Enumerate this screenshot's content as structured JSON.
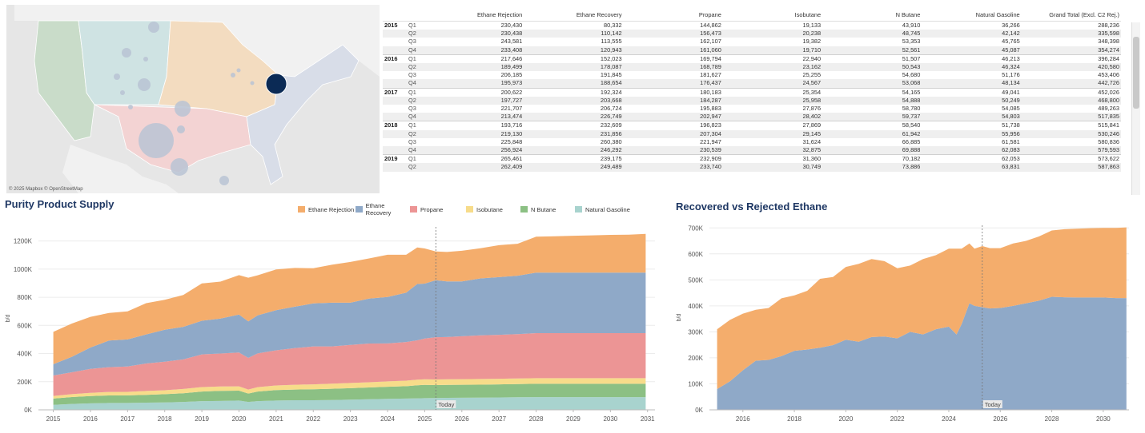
{
  "map": {
    "credit": "© 2025 Mapbox © OpenStreetMap",
    "colors": {
      "background": "#e6e6e6",
      "padd5": "#c9dcc9",
      "padd4": "#cfe3e3",
      "padd2": "#f3dcc0",
      "padd3": "#f3d3d3",
      "padd1": "#d8dde8",
      "bubble": "#b8c3d4",
      "highlight": "#0b2a55"
    }
  },
  "table": {
    "headers": [
      "Ethane Rejection",
      "Ethane Recovery",
      "Propane",
      "Isobutane",
      "N Butane",
      "Natural Gasoline",
      "Grand Total (Excl. C2 Rej.)"
    ],
    "rows": [
      {
        "year": "2015",
        "q": "Q1",
        "v": [
          "230,430",
          "80,332",
          "144,862",
          "19,133",
          "43,910",
          "36,266",
          "288,236"
        ]
      },
      {
        "year": "",
        "q": "Q2",
        "v": [
          "230,438",
          "110,142",
          "156,473",
          "20,238",
          "48,745",
          "42,142",
          "335,598"
        ]
      },
      {
        "year": "",
        "q": "Q3",
        "v": [
          "243,581",
          "113,555",
          "162,107",
          "19,382",
          "53,353",
          "45,765",
          "348,398"
        ]
      },
      {
        "year": "",
        "q": "Q4",
        "v": [
          "233,408",
          "120,943",
          "161,060",
          "19,710",
          "52,561",
          "45,087",
          "354,274"
        ]
      },
      {
        "year": "2016",
        "q": "Q1",
        "v": [
          "217,646",
          "152,023",
          "169,794",
          "22,940",
          "51,507",
          "46,213",
          "396,284"
        ]
      },
      {
        "year": "",
        "q": "Q2",
        "v": [
          "189,499",
          "178,087",
          "168,789",
          "23,162",
          "50,543",
          "46,324",
          "420,580"
        ]
      },
      {
        "year": "",
        "q": "Q3",
        "v": [
          "206,185",
          "191,845",
          "181,627",
          "25,255",
          "54,680",
          "51,176",
          "453,406"
        ]
      },
      {
        "year": "",
        "q": "Q4",
        "v": [
          "195,973",
          "188,654",
          "176,437",
          "24,567",
          "53,068",
          "48,134",
          "442,726"
        ]
      },
      {
        "year": "2017",
        "q": "Q1",
        "v": [
          "200,622",
          "192,324",
          "180,183",
          "25,354",
          "54,165",
          "49,041",
          "452,026"
        ]
      },
      {
        "year": "",
        "q": "Q2",
        "v": [
          "197,727",
          "203,668",
          "184,287",
          "25,958",
          "54,888",
          "50,249",
          "468,800"
        ]
      },
      {
        "year": "",
        "q": "Q3",
        "v": [
          "221,707",
          "206,724",
          "195,883",
          "27,876",
          "58,780",
          "54,085",
          "489,263"
        ]
      },
      {
        "year": "",
        "q": "Q4",
        "v": [
          "213,474",
          "226,749",
          "202,947",
          "28,402",
          "59,737",
          "54,803",
          "517,835"
        ]
      },
      {
        "year": "2018",
        "q": "Q1",
        "v": [
          "193,716",
          "232,609",
          "196,823",
          "27,869",
          "58,540",
          "51,738",
          "515,841"
        ]
      },
      {
        "year": "",
        "q": "Q2",
        "v": [
          "219,130",
          "231,856",
          "207,304",
          "29,145",
          "61,942",
          "55,956",
          "530,246"
        ]
      },
      {
        "year": "",
        "q": "Q3",
        "v": [
          "225,848",
          "260,380",
          "221,947",
          "31,624",
          "66,885",
          "61,581",
          "580,836"
        ]
      },
      {
        "year": "",
        "q": "Q4",
        "v": [
          "256,924",
          "246,292",
          "230,539",
          "32,875",
          "69,888",
          "62,083",
          "579,593"
        ]
      },
      {
        "year": "2019",
        "q": "Q1",
        "v": [
          "265,461",
          "239,175",
          "232,909",
          "31,360",
          "70,182",
          "62,053",
          "573,622"
        ]
      },
      {
        "year": "",
        "q": "Q2",
        "v": [
          "262,409",
          "249,489",
          "233,740",
          "30,749",
          "73,886",
          "63,831",
          "587,863"
        ]
      }
    ]
  },
  "chart_data": [
    {
      "type": "area",
      "stacked": true,
      "title": "Purity Product Supply",
      "ylabel": "b/d",
      "ylim": [
        0,
        1300000
      ],
      "yticks": [
        {
          "v": 0,
          "label": "0K"
        },
        {
          "v": 200000,
          "label": "200K"
        },
        {
          "v": 400000,
          "label": "400K"
        },
        {
          "v": 600000,
          "label": "600K"
        },
        {
          "v": 800000,
          "label": "800K"
        },
        {
          "v": 1000000,
          "label": "1000K"
        },
        {
          "v": 1200000,
          "label": "1200K"
        }
      ],
      "xlim": [
        2014.6,
        2031.2
      ],
      "xticks": [
        "2015",
        "2016",
        "2017",
        "2018",
        "2019",
        "2020",
        "2021",
        "2022",
        "2023",
        "2024",
        "2025",
        "2026",
        "2027",
        "2028",
        "2029",
        "2030",
        "2031"
      ],
      "annotation": {
        "label": "Today",
        "x": 2025.3
      },
      "x": [
        2015.0,
        2015.5,
        2016.0,
        2016.5,
        2017.0,
        2017.5,
        2018.0,
        2018.5,
        2019.0,
        2019.5,
        2020.0,
        2020.25,
        2020.5,
        2021.0,
        2021.5,
        2022.0,
        2022.5,
        2023.0,
        2023.5,
        2024.0,
        2024.5,
        2024.8,
        2025.0,
        2025.3,
        2025.6,
        2026.0,
        2026.5,
        2027.0,
        2027.5,
        2028.0,
        2028.5,
        2029.0,
        2029.5,
        2030.0,
        2030.5,
        2030.95
      ],
      "series": [
        {
          "name": "Natural Gasoline",
          "color": "#a8d3ce",
          "values": [
            36,
            42,
            46,
            49,
            49,
            51,
            52,
            56,
            62,
            63,
            66,
            56,
            62,
            66,
            68,
            68,
            70,
            72,
            75,
            78,
            80,
            82,
            83,
            84,
            85,
            86,
            87,
            88,
            89,
            90,
            90,
            90,
            90,
            90,
            90,
            90
          ]
        },
        {
          "name": "N Butane",
          "color": "#8cc084",
          "values": [
            44,
            49,
            52,
            53,
            54,
            56,
            59,
            62,
            68,
            72,
            70,
            60,
            68,
            74,
            76,
            78,
            80,
            82,
            84,
            86,
            88,
            92,
            94,
            92,
            92,
            92,
            92,
            93,
            94,
            95,
            95,
            95,
            95,
            95,
            95,
            95
          ]
        },
        {
          "name": "Isobutane",
          "color": "#f7dc8a",
          "values": [
            19,
            20,
            23,
            25,
            25,
            27,
            28,
            30,
            32,
            31,
            31,
            28,
            31,
            33,
            34,
            35,
            36,
            37,
            37,
            38,
            39,
            40,
            40,
            40,
            40,
            40,
            40,
            40,
            40,
            40,
            40,
            40,
            40,
            40,
            40,
            40
          ]
        },
        {
          "name": "Propane",
          "color": "#ec9595",
          "values": [
            145,
            156,
            170,
            176,
            180,
            195,
            203,
            210,
            232,
            234,
            240,
            225,
            240,
            250,
            260,
            270,
            265,
            270,
            275,
            270,
            275,
            280,
            290,
            300,
            300,
            305,
            310,
            312,
            315,
            320,
            320,
            320,
            320,
            320,
            320,
            320
          ]
        },
        {
          "name": "Ethane Recovery",
          "color": "#8fa9c8",
          "values": [
            80,
            110,
            152,
            189,
            192,
            207,
            227,
            232,
            239,
            249,
            270,
            260,
            270,
            285,
            295,
            305,
            310,
            300,
            320,
            330,
            350,
            400,
            390,
            405,
            395,
            390,
            405,
            410,
            415,
            430,
            430,
            430,
            430,
            430,
            430,
            430
          ]
        },
        {
          "name": "Ethane Rejection",
          "color": "#f4ad6c",
          "values": [
            230,
            236,
            218,
            196,
            200,
            222,
            213,
            226,
            265,
            262,
            280,
            310,
            285,
            290,
            275,
            250,
            270,
            290,
            285,
            300,
            270,
            260,
            250,
            205,
            210,
            217,
            214,
            227,
            227,
            255,
            258,
            262,
            265,
            268,
            270,
            275
          ]
        }
      ],
      "value_unit": "K b/d"
    },
    {
      "type": "area",
      "stacked": true,
      "title": "Recovered vs Rejected Ethane",
      "ylabel": "b/d",
      "ylim": [
        0,
        710000
      ],
      "yticks": [
        {
          "v": 0,
          "label": "0K"
        },
        {
          "v": 100000,
          "label": "100K"
        },
        {
          "v": 200000,
          "label": "200K"
        },
        {
          "v": 300000,
          "label": "300K"
        },
        {
          "v": 400000,
          "label": "400K"
        },
        {
          "v": 500000,
          "label": "500K"
        },
        {
          "v": 600000,
          "label": "600K"
        },
        {
          "v": 700000,
          "label": "700K"
        }
      ],
      "xlim": [
        2014.7,
        2031.0
      ],
      "xticks": [
        "2016",
        "2018",
        "2020",
        "2022",
        "2024",
        "2026",
        "2028",
        "2030"
      ],
      "annotation": {
        "label": "Today",
        "x": 2025.3
      },
      "x": [
        2015.0,
        2015.5,
        2016.0,
        2016.5,
        2017.0,
        2017.5,
        2018.0,
        2018.5,
        2019.0,
        2019.5,
        2020.0,
        2020.5,
        2021.0,
        2021.5,
        2022.0,
        2022.5,
        2023.0,
        2023.5,
        2024.0,
        2024.3,
        2024.5,
        2024.8,
        2025.0,
        2025.3,
        2025.6,
        2026.0,
        2026.5,
        2027.0,
        2027.5,
        2028.0,
        2028.5,
        2029.0,
        2029.5,
        2030.0,
        2030.5,
        2030.9
      ],
      "series": [
        {
          "name": "Ethane Recovery",
          "color": "#8fa9c8",
          "values": [
            80,
            110,
            152,
            189,
            192,
            207,
            227,
            232,
            239,
            249,
            270,
            262,
            280,
            282,
            275,
            300,
            290,
            310,
            320,
            290,
            330,
            410,
            400,
            395,
            390,
            392,
            400,
            410,
            420,
            435,
            433,
            432,
            432,
            432,
            430,
            430
          ]
        },
        {
          "name": "Ethane Rejection",
          "color": "#f4ad6c",
          "values": [
            230,
            236,
            218,
            196,
            200,
            222,
            213,
            226,
            265,
            262,
            280,
            300,
            300,
            290,
            270,
            255,
            290,
            285,
            300,
            330,
            290,
            230,
            220,
            235,
            232,
            230,
            240,
            240,
            247,
            255,
            262,
            265,
            267,
            268,
            270,
            272
          ]
        }
      ],
      "value_unit": "K b/d"
    }
  ]
}
